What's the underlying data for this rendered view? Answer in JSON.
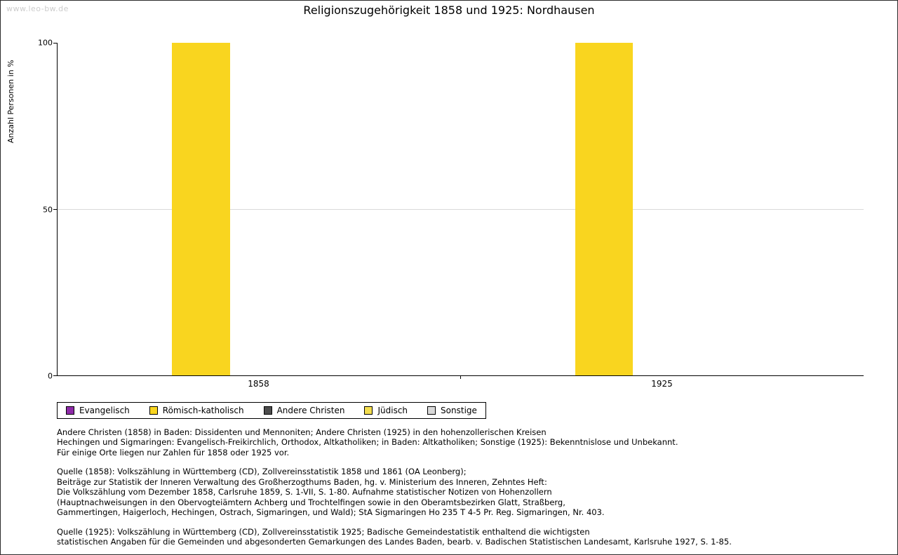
{
  "watermark": "www.leo-bw.de",
  "title": "Religionszugehörigkeit 1858 und 1925: Nordhausen",
  "chart_data": {
    "type": "bar",
    "categories": [
      "1858",
      "1925"
    ],
    "series": [
      {
        "name": "Evangelisch",
        "color": "#8e2ba8",
        "values": [
          0,
          0
        ]
      },
      {
        "name": "Römisch-katholisch",
        "color": "#f9d51f",
        "values": [
          100,
          100
        ]
      },
      {
        "name": "Andere Christen",
        "color": "#4d4d4d",
        "values": [
          0,
          0
        ]
      },
      {
        "name": "Jüdisch",
        "color": "#f4de4e",
        "values": [
          0,
          0
        ]
      },
      {
        "name": "Sonstige",
        "color": "#d9d9d9",
        "values": [
          0,
          0
        ]
      }
    ],
    "title": "Religionszugehörigkeit 1858 und 1925: Nordhausen",
    "xlabel": "",
    "ylabel": "Anzahl Personen in %",
    "ylim": [
      0,
      100
    ],
    "yticks": [
      0,
      50,
      100
    ],
    "grid": "horizontal-interior-ticks-only",
    "legend_position": "bottom-left"
  },
  "footnotes": {
    "para1": "Andere Christen (1858) in Baden: Dissidenten und Mennoniten; Andere Christen (1925) in den hohenzollerischen Kreisen\nHechingen und Sigmaringen: Evangelisch-Freikirchlich, Orthodox, Altkatholiken; in Baden: Altkatholiken; Sonstige (1925): Bekenntnislose und Unbekannt.\nFür einige Orte liegen nur Zahlen für 1858 oder 1925 vor.",
    "para2": "Quelle (1858): Volkszählung in Württemberg (CD), Zollvereinsstatistik 1858 und 1861 (OA Leonberg);\nBeiträge zur Statistik der Inneren Verwaltung des Großherzogthums Baden, hg. v. Ministerium des Inneren, Zehntes Heft:\nDie Volkszählung vom Dezember 1858, Carlsruhe 1859, S. 1-VII, S. 1-80. Aufnahme statistischer Notizen von Hohenzollern\n(Hauptnachweisungen in den Obervogteiämtern Achberg und Trochtelfingen sowie in den Oberamtsbezirken Glatt, Straßberg,\nGammertingen, Haigerloch, Hechingen, Ostrach, Sigmaringen, und Wald); StA Sigmaringen Ho 235 T 4-5 Pr. Reg. Sigmaringen, Nr. 403.",
    "para3": "Quelle (1925): Volkszählung in Württemberg (CD), Zollvereinsstatistik 1925; Badische Gemeindestatistik enthaltend die wichtigsten\nstatistischen Angaben für die Gemeinden und abgesonderten Gemarkungen des Landes Baden, bearb. v. Badischen Statistischen Landesamt, Karlsruhe 1927, S. 1-85."
  }
}
